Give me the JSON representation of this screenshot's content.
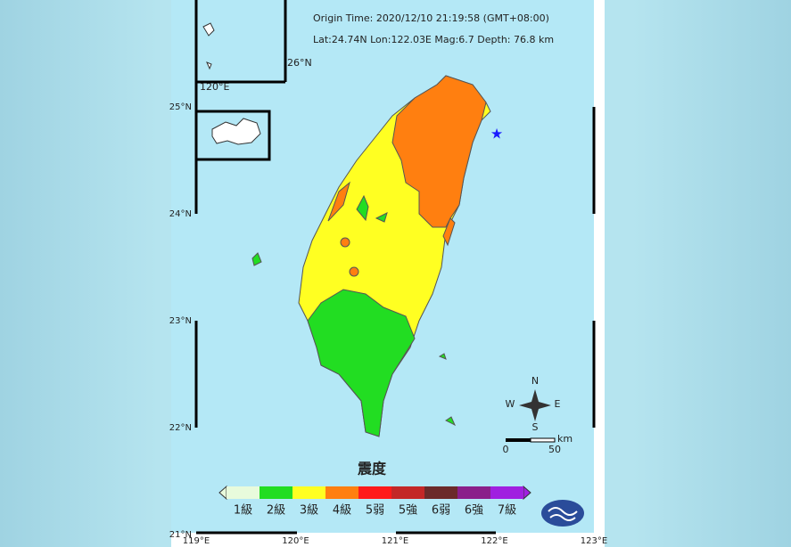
{
  "header": {
    "origin_time": "Origin Time: 2020/12/10  21:19:58  (GMT+08:00)",
    "location": "Lat:24.74N  Lon:122.03E  Mag:6.7  Depth: 76.8 km"
  },
  "lat_labels": [
    "25°N",
    "24°N",
    "23°N",
    "22°N",
    "21°N"
  ],
  "lon_labels": [
    "119°E",
    "120°E",
    "121°E",
    "122°E",
    "123°E"
  ],
  "inset": {
    "lat_label": "26°N",
    "lon_label": "120°E"
  },
  "compass": {
    "north": "N",
    "south": "S",
    "east": "E",
    "west": "W"
  },
  "scale_bar": {
    "unit": "km",
    "start": "0",
    "end": "50"
  },
  "legend": {
    "title": "震度",
    "items": [
      {
        "label": "1級",
        "color": "#e8fbdc"
      },
      {
        "label": "2級",
        "color": "#22dd22"
      },
      {
        "label": "3級",
        "color": "#ffff22"
      },
      {
        "label": "4級",
        "color": "#ff7f10"
      },
      {
        "label": "5弱",
        "color": "#ff1a1a"
      },
      {
        "label": "5強",
        "color": "#c32727"
      },
      {
        "label": "6弱",
        "color": "#6b2a2a"
      },
      {
        "label": "6強",
        "color": "#8a1f8a"
      },
      {
        "label": "7級",
        "color": "#a020e0"
      }
    ]
  }
}
